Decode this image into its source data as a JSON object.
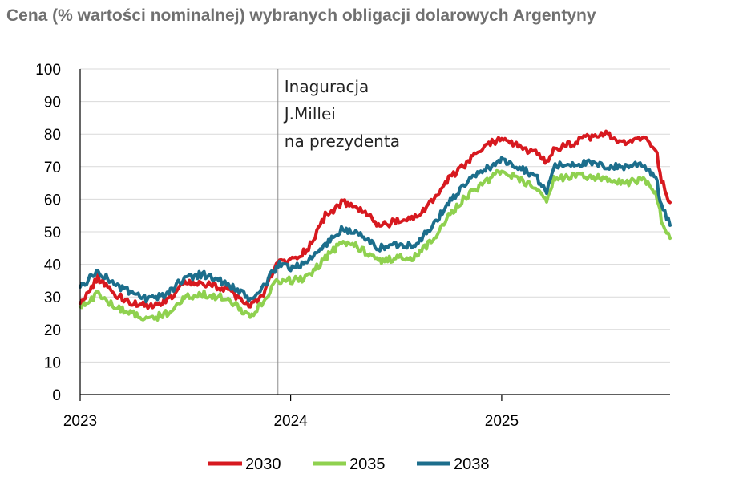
{
  "chart_data": {
    "type": "line",
    "title": "Cena (% wartości nominalnej) wybranych obligacji dolarowych Argentyny",
    "xlabel": "",
    "ylabel": "",
    "ylim": [
      0,
      100
    ],
    "yticks": [
      0,
      10,
      20,
      30,
      40,
      50,
      60,
      70,
      80,
      90,
      100
    ],
    "xlim": [
      "2023-01-01",
      "2025-10-20"
    ],
    "xticks": [
      {
        "label": "2023",
        "date": "2023-01-01"
      },
      {
        "label": "2024",
        "date": "2024-01-01"
      },
      {
        "label": "2025",
        "date": "2025-01-01"
      }
    ],
    "grid": "horizontal",
    "legend": "bottom",
    "annotations": [
      {
        "date": "2023-12-10",
        "lines": [
          "Inaguracja",
          "J.Millei",
          "na prezydenta"
        ]
      }
    ],
    "x": [
      "2023-01-01",
      "2023-02-01",
      "2023-03-01",
      "2023-04-01",
      "2023-05-01",
      "2023-06-01",
      "2023-07-01",
      "2023-08-01",
      "2023-09-01",
      "2023-10-01",
      "2023-10-23",
      "2023-11-15",
      "2023-12-10",
      "2024-01-01",
      "2024-02-01",
      "2024-03-01",
      "2024-04-01",
      "2024-05-01",
      "2024-06-01",
      "2024-07-01",
      "2024-08-01",
      "2024-09-01",
      "2024-10-01",
      "2024-11-01",
      "2024-12-01",
      "2025-01-01",
      "2025-02-01",
      "2025-03-01",
      "2025-03-20",
      "2025-04-01",
      "2025-05-01",
      "2025-06-01",
      "2025-07-01",
      "2025-08-01",
      "2025-09-01",
      "2025-09-25",
      "2025-10-05",
      "2025-10-20"
    ],
    "series": [
      {
        "name": "2030",
        "color": "#d7191f",
        "values": [
          28,
          36,
          31,
          28,
          27,
          29,
          34,
          34,
          33,
          30,
          27,
          31,
          41,
          41,
          45,
          55,
          59,
          57,
          52,
          53,
          54,
          59,
          66,
          71,
          76,
          79,
          76,
          74,
          71,
          75,
          77,
          79,
          80,
          77,
          79,
          76,
          66,
          59
        ]
      },
      {
        "name": "2035",
        "color": "#8fd14f",
        "values": [
          27,
          31,
          27,
          25,
          23,
          25,
          30,
          31,
          30,
          27,
          24,
          29,
          35,
          35,
          36,
          42,
          47,
          45,
          41,
          42,
          42,
          47,
          55,
          61,
          65,
          69,
          66,
          63,
          60,
          66,
          67,
          67,
          66,
          65,
          66,
          62,
          54,
          48
        ]
      },
      {
        "name": "2038",
        "color": "#1c6e8c",
        "values": [
          33,
          38,
          34,
          31,
          29,
          31,
          36,
          37,
          35,
          32,
          29,
          33,
          40,
          39,
          41,
          46,
          51,
          49,
          45,
          46,
          46,
          51,
          59,
          65,
          69,
          72,
          70,
          67,
          62,
          70,
          71,
          71,
          70,
          70,
          71,
          67,
          58,
          52
        ]
      }
    ]
  }
}
